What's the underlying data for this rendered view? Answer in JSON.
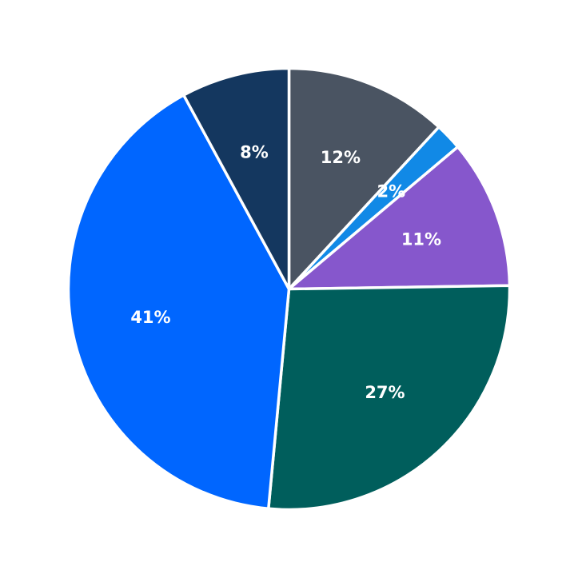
{
  "chart_data": {
    "type": "pie",
    "start_angle_deg": 90,
    "direction": "clockwise",
    "slices": [
      {
        "label": "12%",
        "value": 12,
        "color": "#4a5462"
      },
      {
        "label": "2%",
        "value": 2,
        "color": "#1189e6"
      },
      {
        "label": "11%",
        "value": 11,
        "color": "#8657cc"
      },
      {
        "label": "27%",
        "value": 27,
        "color": "#005e5c"
      },
      {
        "label": "41%",
        "value": 41,
        "color": "#0066ff"
      },
      {
        "label": "8%",
        "value": 8,
        "color": "#14375f"
      }
    ]
  }
}
